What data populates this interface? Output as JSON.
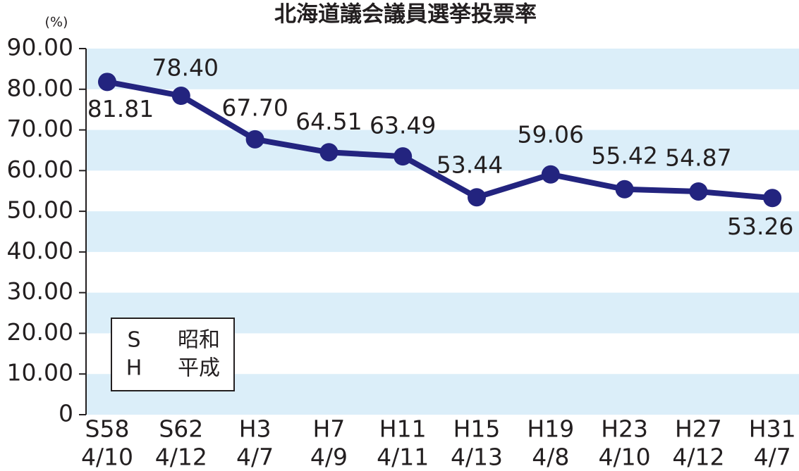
{
  "chart_data": {
    "type": "line",
    "title": "北海道議会議員選挙投票率",
    "y_label": "(%)",
    "categories": [
      [
        "S58",
        "4/10"
      ],
      [
        "S62",
        "4/12"
      ],
      [
        "H3",
        "4/7"
      ],
      [
        "H7",
        "4/9"
      ],
      [
        "H11",
        "4/11"
      ],
      [
        "H15",
        "4/13"
      ],
      [
        "H19",
        "4/8"
      ],
      [
        "H23",
        "4/10"
      ],
      [
        "H27",
        "4/12"
      ],
      [
        "H31",
        "4/7"
      ]
    ],
    "series": [
      {
        "name": "投票率",
        "color": "#23247f",
        "values": [
          81.81,
          78.4,
          67.7,
          64.51,
          63.49,
          53.44,
          59.06,
          55.42,
          54.87,
          53.26
        ],
        "value_labels": [
          "81.81",
          "78.40",
          "67.70",
          "64.51",
          "63.49",
          "53.44",
          "59.06",
          "55.42",
          "54.87",
          "53.26"
        ]
      }
    ],
    "ylim": [
      0,
      90
    ],
    "yticks": [
      0,
      {
        "value": 10,
        "label": "10.00"
      },
      {
        "value": 20,
        "label": "20.00"
      },
      {
        "value": 30,
        "label": "30.00"
      },
      {
        "value": 40,
        "label": "40.00"
      },
      {
        "value": 50,
        "label": "50.00"
      },
      {
        "value": 60,
        "label": "60.00"
      },
      {
        "value": 70,
        "label": "70.00"
      },
      {
        "value": 80,
        "label": "80.00"
      },
      {
        "value": 90,
        "label": "90.00"
      }
    ],
    "band_color": "#dbeef9",
    "era_legend": [
      [
        "S",
        "昭和"
      ],
      [
        "H",
        "平成"
      ]
    ]
  }
}
